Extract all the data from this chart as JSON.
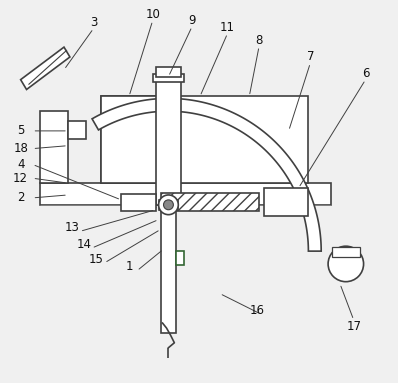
{
  "background_color": "#f0f0f0",
  "line_color": "#404040",
  "label_color": "#111111",
  "fig_width": 3.98,
  "fig_height": 3.83,
  "dpi": 100
}
